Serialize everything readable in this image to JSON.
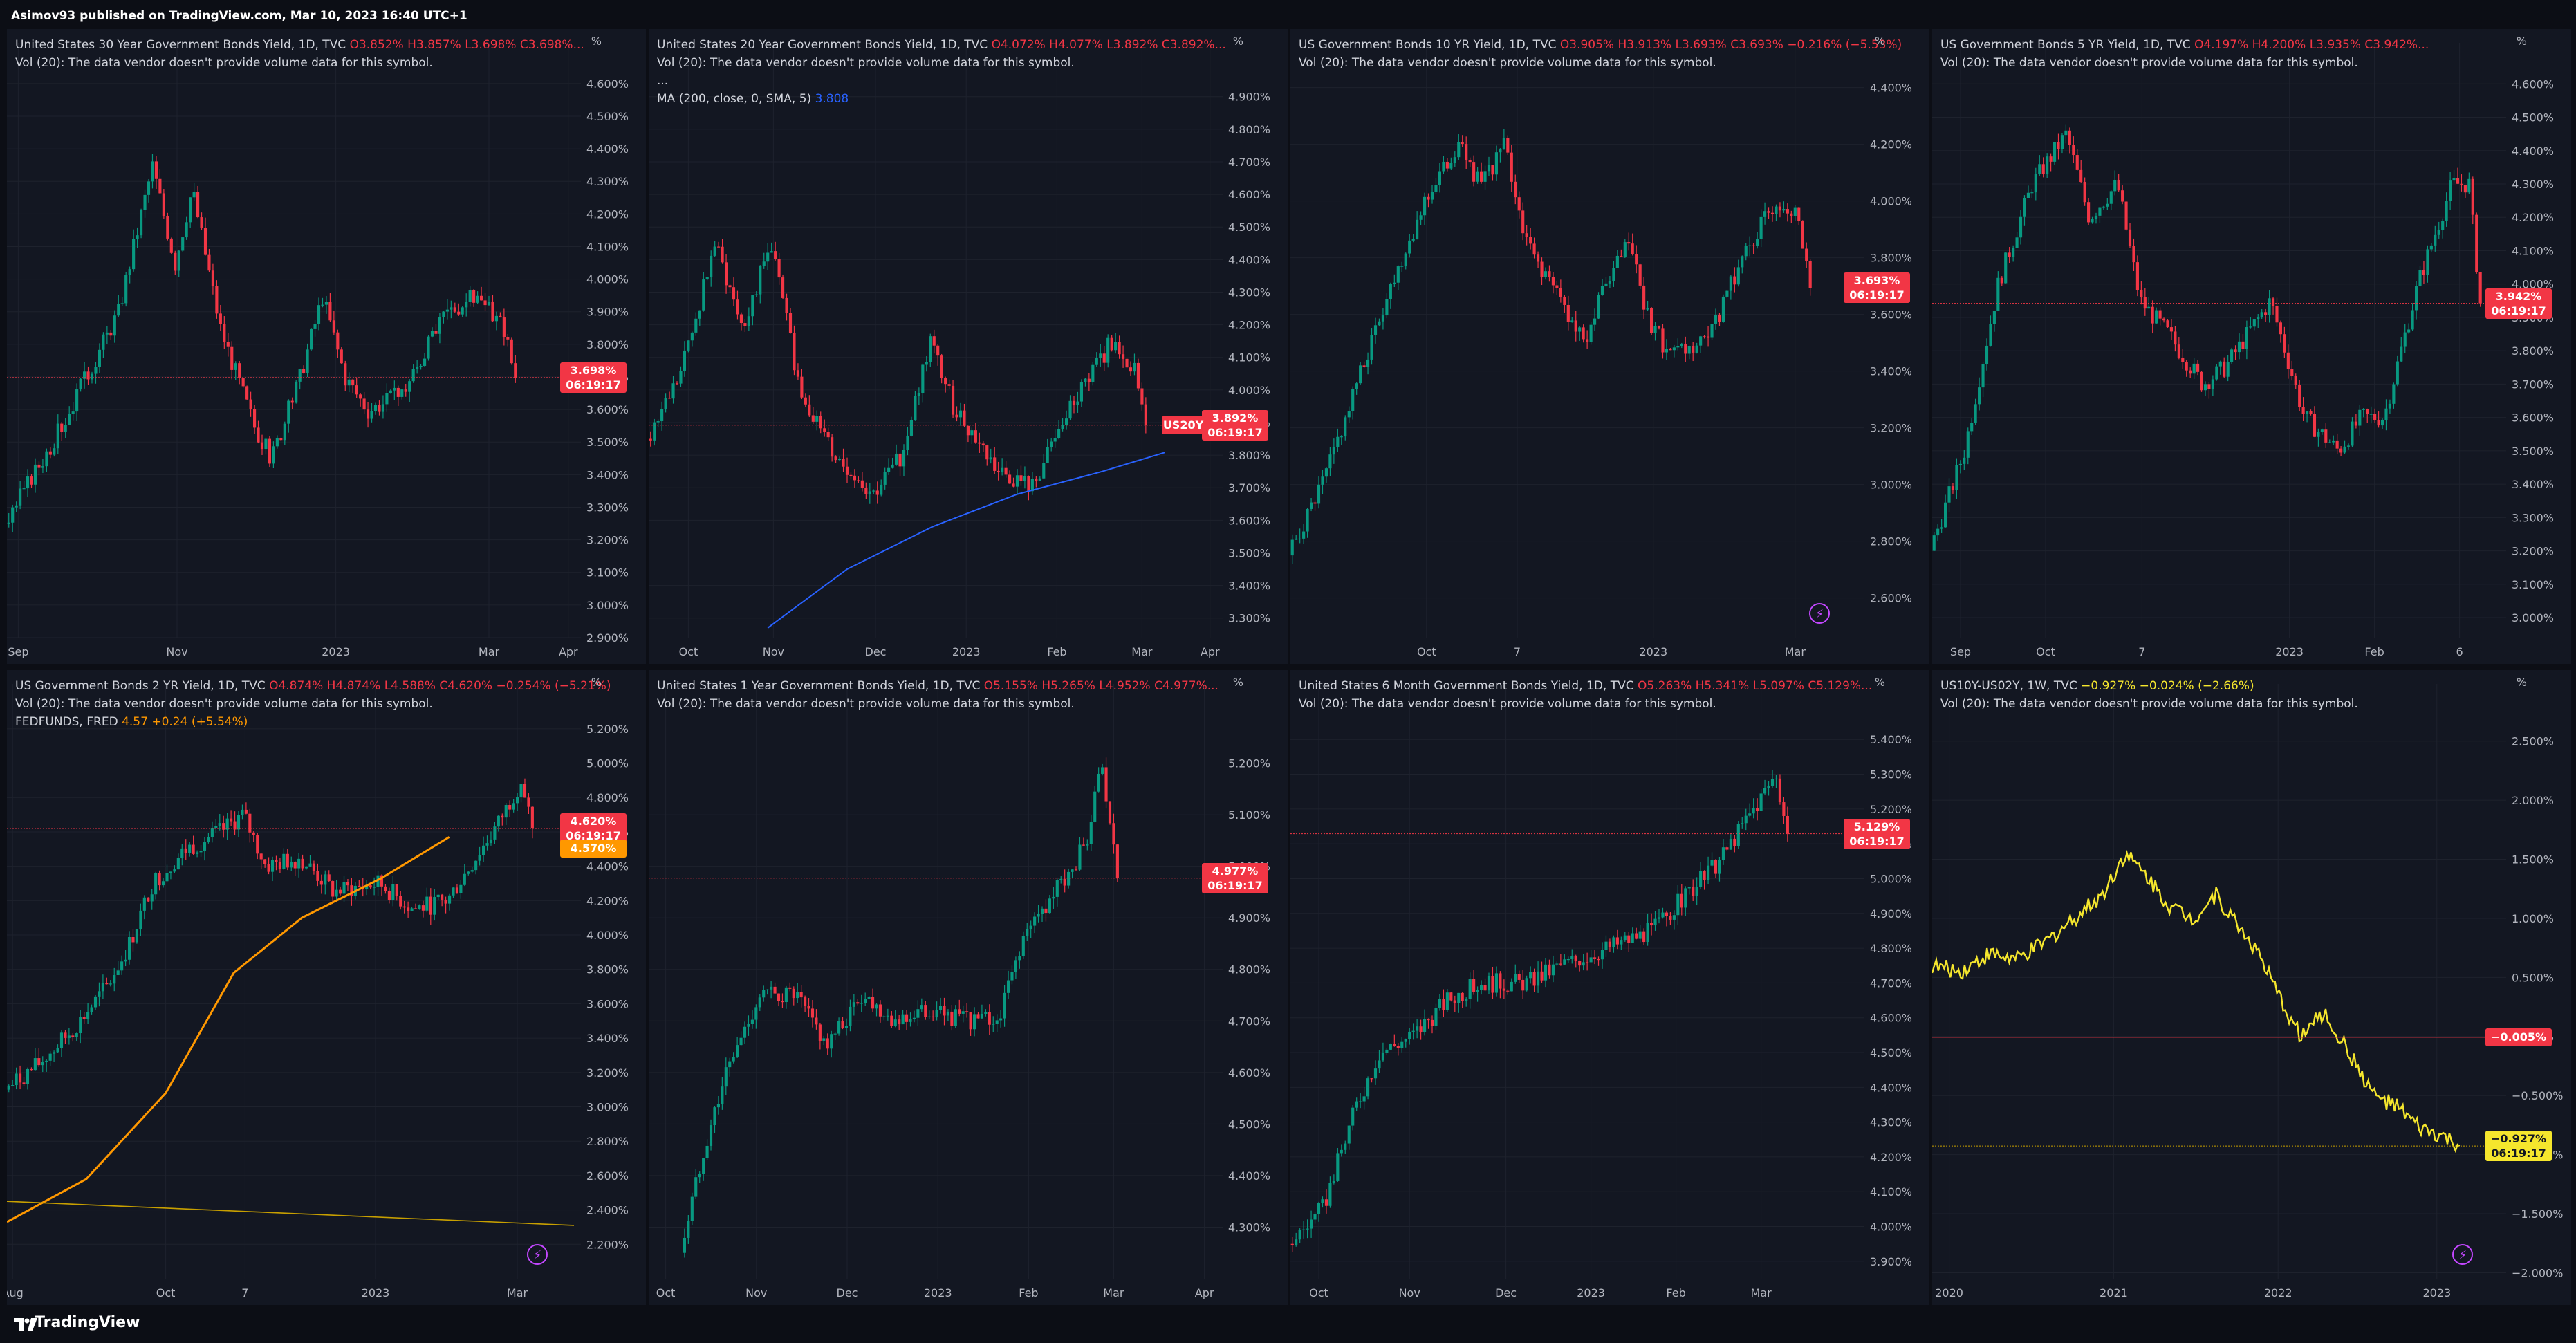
{
  "header": {
    "text": "Asimov93 published on TradingView.com, Mar 10, 2023 16:40 UTC+1"
  },
  "footer": {
    "brand": "TradingView"
  },
  "colors": {
    "up": "#089981",
    "down": "#f23645",
    "background": "#131722",
    "grid": "#1e222d",
    "spread": "#f5e62d",
    "fedfunds": "#ff9800",
    "ma": "#2962ff"
  },
  "panels": [
    {
      "title": "United States 30 Year Government Bonds Yield, 1D, TVC",
      "ohlc": [
        "O3.852%",
        "H3.857%",
        "L3.698%",
        "C3.698%..."
      ],
      "vol": "Vol (20): The data vendor doesn't provide volume data for this symbol.",
      "unit": "%",
      "price_tag": "3.698%",
      "countdown": "06:19:17",
      "chart_data": {
        "type": "candlestick",
        "ylim": [
          2.9,
          4.64
        ],
        "yticks": [
          "2.900%",
          "3.000%",
          "3.100%",
          "3.200%",
          "3.300%",
          "3.400%",
          "3.500%",
          "3.600%",
          "3.700%",
          "3.800%",
          "3.900%",
          "4.000%",
          "4.100%",
          "4.200%",
          "4.300%",
          "4.400%",
          "4.500%",
          "4.600%"
        ],
        "xticks": [
          "Sep",
          "Nov",
          "2023",
          "Mar",
          "Apr"
        ],
        "xtick_pos": [
          0.02,
          0.3,
          0.58,
          0.85,
          0.99
        ],
        "anchors": [
          [
            0,
            3.25
          ],
          [
            0.1,
            3.55
          ],
          [
            0.2,
            3.9
          ],
          [
            0.26,
            4.35
          ],
          [
            0.3,
            4.05
          ],
          [
            0.33,
            4.28
          ],
          [
            0.38,
            3.85
          ],
          [
            0.44,
            3.55
          ],
          [
            0.47,
            3.45
          ],
          [
            0.52,
            3.7
          ],
          [
            0.56,
            3.95
          ],
          [
            0.6,
            3.7
          ],
          [
            0.64,
            3.6
          ],
          [
            0.7,
            3.65
          ],
          [
            0.78,
            3.9
          ],
          [
            0.83,
            3.95
          ],
          [
            0.88,
            3.85
          ],
          [
            0.9,
            3.698
          ]
        ],
        "last": 3.698
      }
    },
    {
      "title": "United States 20 Year Government Bonds Yield, 1D, TVC",
      "ohlc": [
        "O4.072%",
        "H4.077%",
        "L3.892%",
        "C3.892%..."
      ],
      "vol": "Vol (20): The data vendor doesn't provide volume data for this symbol.",
      "extra": [
        "...",
        "MA (200, close, 0, SMA, 5)"
      ],
      "ma_value": "3.808",
      "unit": "%",
      "price_tag": "3.892%",
      "countdown": "06:19:17",
      "symbol_tag": "US20Y",
      "chart_data": {
        "type": "candlestick",
        "ylim": [
          3.24,
          4.98
        ],
        "yticks": [
          "3.300%",
          "3.400%",
          "3.500%",
          "3.600%",
          "3.700%",
          "3.800%",
          "3.900%",
          "4.000%",
          "4.100%",
          "4.200%",
          "4.300%",
          "4.400%",
          "4.500%",
          "4.600%",
          "4.700%",
          "4.800%",
          "4.900%"
        ],
        "xticks": [
          "Oct",
          "Nov",
          "Dec",
          "2023",
          "Feb",
          "Mar",
          "Apr"
        ],
        "xtick_pos": [
          0.07,
          0.22,
          0.4,
          0.56,
          0.72,
          0.87,
          0.99
        ],
        "anchors": [
          [
            0,
            3.85
          ],
          [
            0.06,
            4.05
          ],
          [
            0.12,
            4.45
          ],
          [
            0.17,
            4.2
          ],
          [
            0.22,
            4.45
          ],
          [
            0.27,
            4.0
          ],
          [
            0.33,
            3.8
          ],
          [
            0.4,
            3.68
          ],
          [
            0.45,
            3.8
          ],
          [
            0.5,
            4.15
          ],
          [
            0.54,
            3.95
          ],
          [
            0.58,
            3.85
          ],
          [
            0.62,
            3.75
          ],
          [
            0.68,
            3.7
          ],
          [
            0.75,
            3.95
          ],
          [
            0.82,
            4.15
          ],
          [
            0.86,
            4.07
          ],
          [
            0.88,
            3.892
          ]
        ],
        "ma": [
          [
            0.21,
            3.27
          ],
          [
            0.35,
            3.45
          ],
          [
            0.5,
            3.58
          ],
          [
            0.65,
            3.68
          ],
          [
            0.8,
            3.75
          ],
          [
            0.91,
            3.808
          ]
        ],
        "last": 3.892
      }
    },
    {
      "title": "US Government Bonds 10 YR Yield, 1D, TVC",
      "ohlc": [
        "O3.905%",
        "H3.913%",
        "L3.693%",
        "C3.693%",
        "−0.216% (−5.53%)"
      ],
      "vol": "Vol (20): The data vendor doesn't provide volume data for this symbol.",
      "unit": "%",
      "price_tag": "3.693%",
      "countdown": "06:19:17",
      "chart_data": {
        "type": "candlestick",
        "ylim": [
          2.46,
          4.46
        ],
        "yticks": [
          "2.600%",
          "2.800%",
          "3.000%",
          "3.200%",
          "3.400%",
          "3.600%",
          "3.800%",
          "4.000%",
          "4.200%",
          "4.400%"
        ],
        "xticks": [
          "Oct",
          "7",
          "2023",
          "Mar"
        ],
        "xtick_pos": [
          0.24,
          0.4,
          0.64,
          0.89
        ],
        "anchors": [
          [
            0,
            2.75
          ],
          [
            0.06,
            3.0
          ],
          [
            0.12,
            3.35
          ],
          [
            0.18,
            3.7
          ],
          [
            0.24,
            4.0
          ],
          [
            0.3,
            4.2
          ],
          [
            0.34,
            4.05
          ],
          [
            0.38,
            4.2
          ],
          [
            0.42,
            3.85
          ],
          [
            0.48,
            3.65
          ],
          [
            0.52,
            3.5
          ],
          [
            0.56,
            3.7
          ],
          [
            0.6,
            3.85
          ],
          [
            0.64,
            3.55
          ],
          [
            0.68,
            3.45
          ],
          [
            0.74,
            3.5
          ],
          [
            0.8,
            3.8
          ],
          [
            0.86,
            4.0
          ],
          [
            0.9,
            3.95
          ],
          [
            0.92,
            3.693
          ]
        ],
        "last": 3.693
      }
    },
    {
      "title": "US Government Bonds 5 YR Yield, 1D, TVC",
      "ohlc": [
        "O4.197%",
        "H4.200%",
        "L3.935%",
        "C3.942%..."
      ],
      "vol": "Vol (20): The data vendor doesn't provide volume data for this symbol.",
      "unit": "%",
      "price_tag": "3.942%",
      "countdown": "06:19:17",
      "chart_data": {
        "type": "candlestick",
        "ylim": [
          2.94,
          4.64
        ],
        "yticks": [
          "3.000%",
          "3.100%",
          "3.200%",
          "3.300%",
          "3.400%",
          "3.500%",
          "3.600%",
          "3.700%",
          "3.800%",
          "3.900%",
          "4.000%",
          "4.100%",
          "4.200%",
          "4.300%",
          "4.400%",
          "4.500%",
          "4.600%"
        ],
        "xticks": [
          "Sep",
          "Oct",
          "7",
          "2023",
          "Feb",
          "6"
        ],
        "xtick_pos": [
          0.05,
          0.2,
          0.37,
          0.63,
          0.78,
          0.93
        ],
        "anchors": [
          [
            0,
            3.2
          ],
          [
            0.06,
            3.5
          ],
          [
            0.12,
            4.0
          ],
          [
            0.18,
            4.3
          ],
          [
            0.24,
            4.45
          ],
          [
            0.28,
            4.2
          ],
          [
            0.33,
            4.3
          ],
          [
            0.37,
            3.95
          ],
          [
            0.42,
            3.85
          ],
          [
            0.48,
            3.7
          ],
          [
            0.52,
            3.75
          ],
          [
            0.6,
            3.95
          ],
          [
            0.66,
            3.6
          ],
          [
            0.72,
            3.5
          ],
          [
            0.76,
            3.6
          ],
          [
            0.8,
            3.6
          ],
          [
            0.86,
            4.0
          ],
          [
            0.92,
            4.3
          ],
          [
            0.95,
            4.3
          ],
          [
            0.97,
            3.942
          ]
        ],
        "last": 3.942
      }
    },
    {
      "title": "US Government Bonds 2 YR Yield, 1D, TVC",
      "ohlc": [
        "O4.874%",
        "H4.874%",
        "L4.588%",
        "C4.620%",
        "−0.254% (−5.21%)"
      ],
      "vol": "Vol (20): The data vendor doesn't provide volume data for this symbol.",
      "fed_label": "FEDFUNDS, FRED",
      "fed_value": "4.57",
      "fed_change": "+0.24 (+5.54%)",
      "unit": "%",
      "price_tag": "4.620%",
      "countdown": "06:19:17",
      "fed_tag": "4.570%",
      "chart_data": {
        "type": "candlestick",
        "ylim": [
          2.0,
          5.3
        ],
        "yticks": [
          "2.200%",
          "2.400%",
          "2.600%",
          "2.800%",
          "3.000%",
          "3.200%",
          "3.400%",
          "3.600%",
          "3.800%",
          "4.000%",
          "4.200%",
          "4.400%",
          "4.600%",
          "4.800%",
          "5.000%",
          "5.200%"
        ],
        "xticks": [
          "Aug",
          "Oct",
          "7",
          "2023",
          "Mar"
        ],
        "xtick_pos": [
          0.01,
          0.28,
          0.42,
          0.65,
          0.9
        ],
        "anchors": [
          [
            0,
            3.1
          ],
          [
            0.06,
            3.25
          ],
          [
            0.12,
            3.45
          ],
          [
            0.18,
            3.7
          ],
          [
            0.22,
            3.95
          ],
          [
            0.26,
            4.3
          ],
          [
            0.32,
            4.5
          ],
          [
            0.38,
            4.6
          ],
          [
            0.42,
            4.7
          ],
          [
            0.46,
            4.4
          ],
          [
            0.52,
            4.45
          ],
          [
            0.58,
            4.25
          ],
          [
            0.66,
            4.3
          ],
          [
            0.72,
            4.15
          ],
          [
            0.78,
            4.2
          ],
          [
            0.82,
            4.4
          ],
          [
            0.87,
            4.65
          ],
          [
            0.91,
            4.9
          ],
          [
            0.93,
            4.62
          ]
        ],
        "fed": [
          [
            0,
            2.33
          ],
          [
            0.14,
            2.58
          ],
          [
            0.28,
            3.08
          ],
          [
            0.4,
            3.78
          ],
          [
            0.52,
            4.1
          ],
          [
            0.66,
            4.33
          ],
          [
            0.78,
            4.57
          ]
        ],
        "baseline": [
          [
            0,
            2.45
          ],
          [
            1.0,
            2.31
          ]
        ],
        "last": 4.62
      }
    },
    {
      "title": "United States 1 Year Government Bonds Yield, 1D, TVC",
      "ohlc": [
        "O5.155%",
        "H5.265%",
        "L4.952%",
        "C4.977%..."
      ],
      "vol": "Vol (20): The data vendor doesn't provide volume data for this symbol.",
      "unit": "%",
      "price_tag": "4.977%",
      "countdown": "06:19:17",
      "chart_data": {
        "type": "candlestick",
        "ylim": [
          4.2,
          5.3
        ],
        "yticks": [
          "4.300%",
          "4.400%",
          "4.500%",
          "4.600%",
          "4.700%",
          "4.800%",
          "4.900%",
          "5.000%",
          "5.100%",
          "5.200%"
        ],
        "xticks": [
          "Oct",
          "Nov",
          "Dec",
          "2023",
          "Feb",
          "Mar",
          "Apr"
        ],
        "xtick_pos": [
          0.03,
          0.19,
          0.35,
          0.51,
          0.67,
          0.82,
          0.98
        ],
        "anchors": [
          [
            0.06,
            4.25
          ],
          [
            0.1,
            4.45
          ],
          [
            0.14,
            4.6
          ],
          [
            0.2,
            4.75
          ],
          [
            0.26,
            4.75
          ],
          [
            0.32,
            4.65
          ],
          [
            0.38,
            4.75
          ],
          [
            0.44,
            4.7
          ],
          [
            0.5,
            4.72
          ],
          [
            0.56,
            4.7
          ],
          [
            0.62,
            4.7
          ],
          [
            0.66,
            4.85
          ],
          [
            0.72,
            4.95
          ],
          [
            0.78,
            5.05
          ],
          [
            0.8,
            5.2
          ],
          [
            0.83,
            4.977
          ]
        ],
        "last": 4.977
      }
    },
    {
      "title": "United States 6 Month Government Bonds Yield, 1D, TVC",
      "ohlc": [
        "O5.263%",
        "H5.341%",
        "L5.097%",
        "C5.129%..."
      ],
      "vol": "Vol (20): The data vendor doesn't provide volume data for this symbol.",
      "unit": "%",
      "price_tag": "5.129%",
      "countdown": "06:19:17",
      "chart_data": {
        "type": "candlestick",
        "ylim": [
          3.85,
          5.48
        ],
        "yticks": [
          "3.900%",
          "4.000%",
          "4.100%",
          "4.200%",
          "4.300%",
          "4.400%",
          "4.500%",
          "4.600%",
          "4.700%",
          "4.800%",
          "4.900%",
          "5.000%",
          "5.100%",
          "5.200%",
          "5.300%",
          "5.400%"
        ],
        "xticks": [
          "Oct",
          "Nov",
          "Dec",
          "2023",
          "Feb",
          "Mar"
        ],
        "xtick_pos": [
          0.05,
          0.21,
          0.38,
          0.53,
          0.68,
          0.83
        ],
        "anchors": [
          [
            0,
            3.95
          ],
          [
            0.06,
            4.05
          ],
          [
            0.12,
            4.35
          ],
          [
            0.16,
            4.5
          ],
          [
            0.22,
            4.55
          ],
          [
            0.28,
            4.65
          ],
          [
            0.34,
            4.7
          ],
          [
            0.42,
            4.7
          ],
          [
            0.48,
            4.75
          ],
          [
            0.56,
            4.8
          ],
          [
            0.64,
            4.85
          ],
          [
            0.7,
            4.95
          ],
          [
            0.76,
            5.05
          ],
          [
            0.8,
            5.15
          ],
          [
            0.86,
            5.3
          ],
          [
            0.88,
            5.129
          ]
        ],
        "last": 5.129
      }
    },
    {
      "title": "US10Y-US02Y, 1W, TVC",
      "ohlc": [
        "−0.927%",
        "−0.024% (−2.66%)"
      ],
      "vol": "Vol (20): The data vendor doesn't provide volume data for this symbol.",
      "unit": "%",
      "price_tag": "−0.927%",
      "countdown": "06:19:17",
      "line_tag": "−0.005%",
      "chart_data": {
        "type": "line",
        "ylim": [
          -2.05,
          2.75
        ],
        "yticks": [
          "−2.000%",
          "−1.500%",
          "−1.000%",
          "−0.500%",
          "0.000%",
          "0.500%",
          "1.000%",
          "1.500%",
          "2.000%",
          "2.500%"
        ],
        "xticks": [
          "2020",
          "2021",
          "2022",
          "2023"
        ],
        "xtick_pos": [
          0.03,
          0.32,
          0.61,
          0.89
        ],
        "anchors": [
          [
            0,
            0.6
          ],
          [
            0.05,
            0.55
          ],
          [
            0.1,
            0.7
          ],
          [
            0.15,
            0.65
          ],
          [
            0.2,
            0.8
          ],
          [
            0.25,
            1.0
          ],
          [
            0.3,
            1.2
          ],
          [
            0.34,
            1.55
          ],
          [
            0.38,
            1.35
          ],
          [
            0.42,
            1.1
          ],
          [
            0.46,
            1.0
          ],
          [
            0.5,
            1.2
          ],
          [
            0.53,
            1.0
          ],
          [
            0.57,
            0.75
          ],
          [
            0.61,
            0.35
          ],
          [
            0.65,
            0.0
          ],
          [
            0.69,
            0.2
          ],
          [
            0.73,
            -0.1
          ],
          [
            0.78,
            -0.5
          ],
          [
            0.82,
            -0.6
          ],
          [
            0.86,
            -0.78
          ],
          [
            0.9,
            -0.85
          ],
          [
            0.93,
            -0.927
          ]
        ],
        "hline": -0.005,
        "last": -0.927
      }
    }
  ]
}
